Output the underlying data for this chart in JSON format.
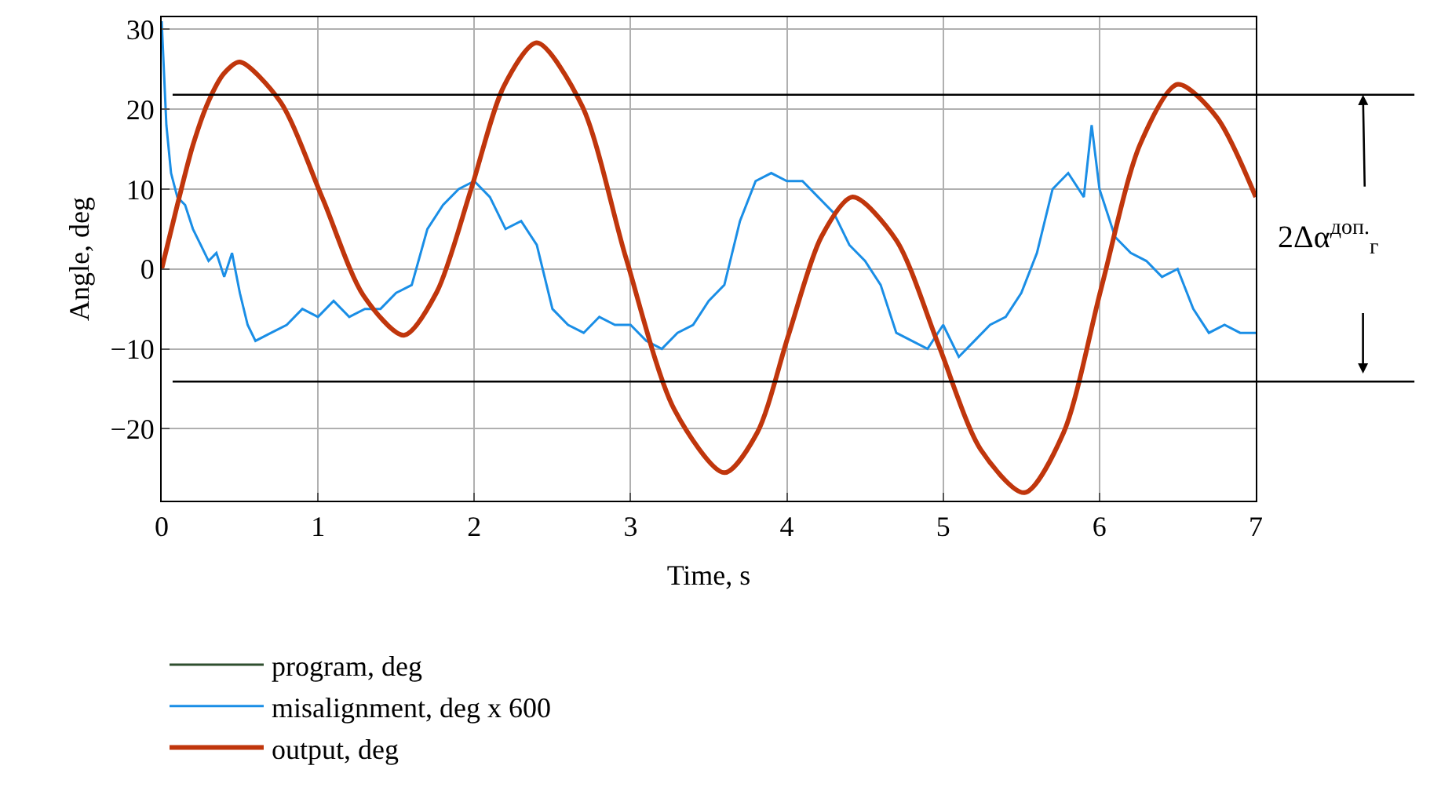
{
  "chart_data": {
    "type": "line",
    "xlabel": "Time, s",
    "ylabel": "Angle, deg",
    "xlim": [
      0,
      7
    ],
    "ylim": [
      -29,
      31.5
    ],
    "xticks": [
      0,
      1,
      2,
      3,
      4,
      5,
      6,
      7
    ],
    "yticks": [
      -20,
      -10,
      0,
      10,
      20,
      30
    ],
    "grid": true,
    "legend": "bottom left",
    "marker": "none",
    "ref_lines": [
      {
        "axis": "y",
        "value": 21.8,
        "color": "#000000"
      },
      {
        "axis": "y",
        "value": -14.1,
        "color": "#000000"
      }
    ],
    "annotations": [
      "2Δα$^{доп.}$$_{г}$"
    ],
    "series": [
      {
        "name": "program, deg",
        "color": "#2f4f2f"
      },
      {
        "name": "misalignment, deg x 600",
        "color": "#1a8ee6",
        "x": [
          0,
          0.03,
          0.06,
          0.1,
          0.15,
          0.2,
          0.25,
          0.3,
          0.35,
          0.4,
          0.45,
          0.5,
          0.55,
          0.6,
          0.7,
          0.8,
          0.9,
          1.0,
          1.1,
          1.2,
          1.3,
          1.4,
          1.5,
          1.6,
          1.7,
          1.8,
          1.9,
          2.0,
          2.1,
          2.2,
          2.3,
          2.4,
          2.5,
          2.6,
          2.7,
          2.8,
          2.9,
          3.0,
          3.1,
          3.2,
          3.3,
          3.4,
          3.5,
          3.6,
          3.7,
          3.8,
          3.9,
          4.0,
          4.1,
          4.2,
          4.3,
          4.4,
          4.5,
          4.6,
          4.7,
          4.8,
          4.9,
          5.0,
          5.1,
          5.2,
          5.3,
          5.4,
          5.5,
          5.6,
          5.7,
          5.8,
          5.9,
          5.95,
          6.0,
          6.1,
          6.2,
          6.3,
          6.4,
          6.5,
          6.6,
          6.7,
          6.8,
          6.9,
          7.0
        ],
        "values": [
          31,
          18,
          12,
          9,
          8,
          5,
          3,
          1,
          2,
          -1,
          2,
          -3,
          -7,
          -9,
          -8,
          -7,
          -5,
          -6,
          -4,
          -6,
          -5,
          -5,
          -3,
          -2,
          5,
          8,
          10,
          11,
          9,
          5,
          6,
          3,
          -5,
          -7,
          -8,
          -6,
          -7,
          -7,
          -9,
          -10,
          -8,
          -7,
          -4,
          -2,
          6,
          11,
          12,
          11,
          11,
          9,
          7,
          3,
          1,
          -2,
          -8,
          -9,
          -10,
          -7,
          -11,
          -9,
          -7,
          -6,
          -3,
          2,
          10,
          12,
          9,
          18,
          10,
          4,
          2,
          1,
          -1,
          0,
          -5,
          -8,
          -7,
          -8,
          -8
        ]
      },
      {
        "name": "output, deg",
        "color": "#c0360c",
        "x": [
          0,
          0.1,
          0.2,
          0.3,
          0.4,
          0.5,
          0.76,
          1.03,
          1.29,
          1.55,
          1.76,
          1.98,
          2.19,
          2.4,
          2.69,
          2.97,
          3.28,
          3.6,
          3.81,
          4.01,
          4.22,
          4.42,
          4.7,
          4.97,
          5.24,
          5.52,
          5.77,
          6.01,
          6.26,
          6.5,
          6.75,
          7
        ],
        "values": [
          0,
          8,
          15.5,
          21,
          24.5,
          25.9,
          20.9,
          8.8,
          -3.3,
          -8.3,
          -2.9,
          10,
          22.9,
          28.3,
          20.4,
          1.4,
          -17.6,
          -25.5,
          -20.5,
          -8.3,
          4,
          9,
          3.6,
          -9.5,
          -22.6,
          -28,
          -20.5,
          -2.5,
          15.6,
          23.1,
          19,
          9
        ]
      }
    ]
  }
}
